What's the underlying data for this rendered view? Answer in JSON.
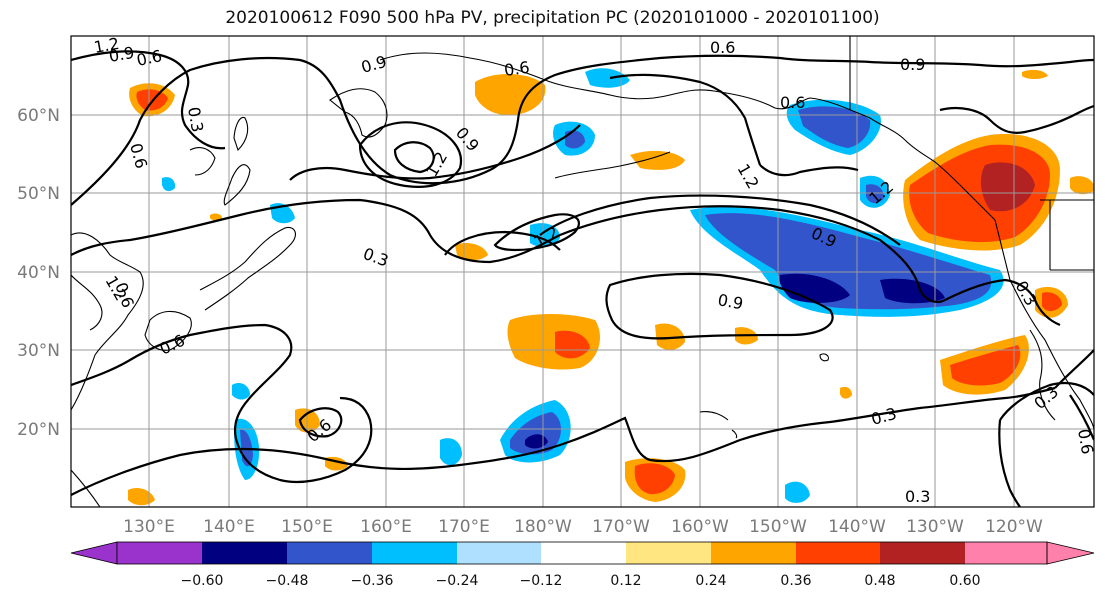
{
  "title": "2020100612 F090 500 hPa PV, precipitation PC (2020101000 - 2020101100)",
  "latitude_labels": [
    "60°N",
    "50°N",
    "40°N",
    "30°N",
    "20°N"
  ],
  "longitude_labels": [
    "130°E",
    "140°E",
    "150°E",
    "160°E",
    "170°E",
    "180°W",
    "170°W",
    "160°W",
    "150°W",
    "140°W",
    "130°W",
    "120°W"
  ],
  "colorbar": {
    "tick_labels": [
      "−0.60",
      "−0.48",
      "−0.36",
      "−0.24",
      "−0.12",
      "0.12",
      "0.24",
      "0.36",
      "0.48",
      "0.60"
    ],
    "colors": [
      "#9933cc",
      "#000080",
      "#3355cc",
      "#00bfff",
      "#b0e0ff",
      "#ffffff",
      "#ffe680",
      "#ffa500",
      "#ff4000",
      "#b22222",
      "#ff80aa"
    ]
  },
  "contour_labels": [
    {
      "text": "1.2"
    },
    {
      "text": "0.9"
    },
    {
      "text": "0.6"
    },
    {
      "text": "0.9"
    },
    {
      "text": "0.6"
    },
    {
      "text": "0.6"
    },
    {
      "text": "0.9"
    },
    {
      "text": "0.3"
    },
    {
      "text": "0.6"
    },
    {
      "text": "0.9"
    },
    {
      "text": "1.2"
    },
    {
      "text": "1.2"
    },
    {
      "text": "0.6"
    },
    {
      "text": "1.2"
    },
    {
      "text": "1.2"
    },
    {
      "text": "0.9"
    },
    {
      "text": "1.2"
    },
    {
      "text": "0.6"
    },
    {
      "text": "0.3"
    },
    {
      "text": "0.6"
    },
    {
      "text": "0.9"
    },
    {
      "text": "0.6"
    },
    {
      "text": "0.3"
    },
    {
      "text": "0.3"
    },
    {
      "text": "0.3"
    },
    {
      "text": "0.3"
    },
    {
      "text": "0.6"
    }
  ]
}
